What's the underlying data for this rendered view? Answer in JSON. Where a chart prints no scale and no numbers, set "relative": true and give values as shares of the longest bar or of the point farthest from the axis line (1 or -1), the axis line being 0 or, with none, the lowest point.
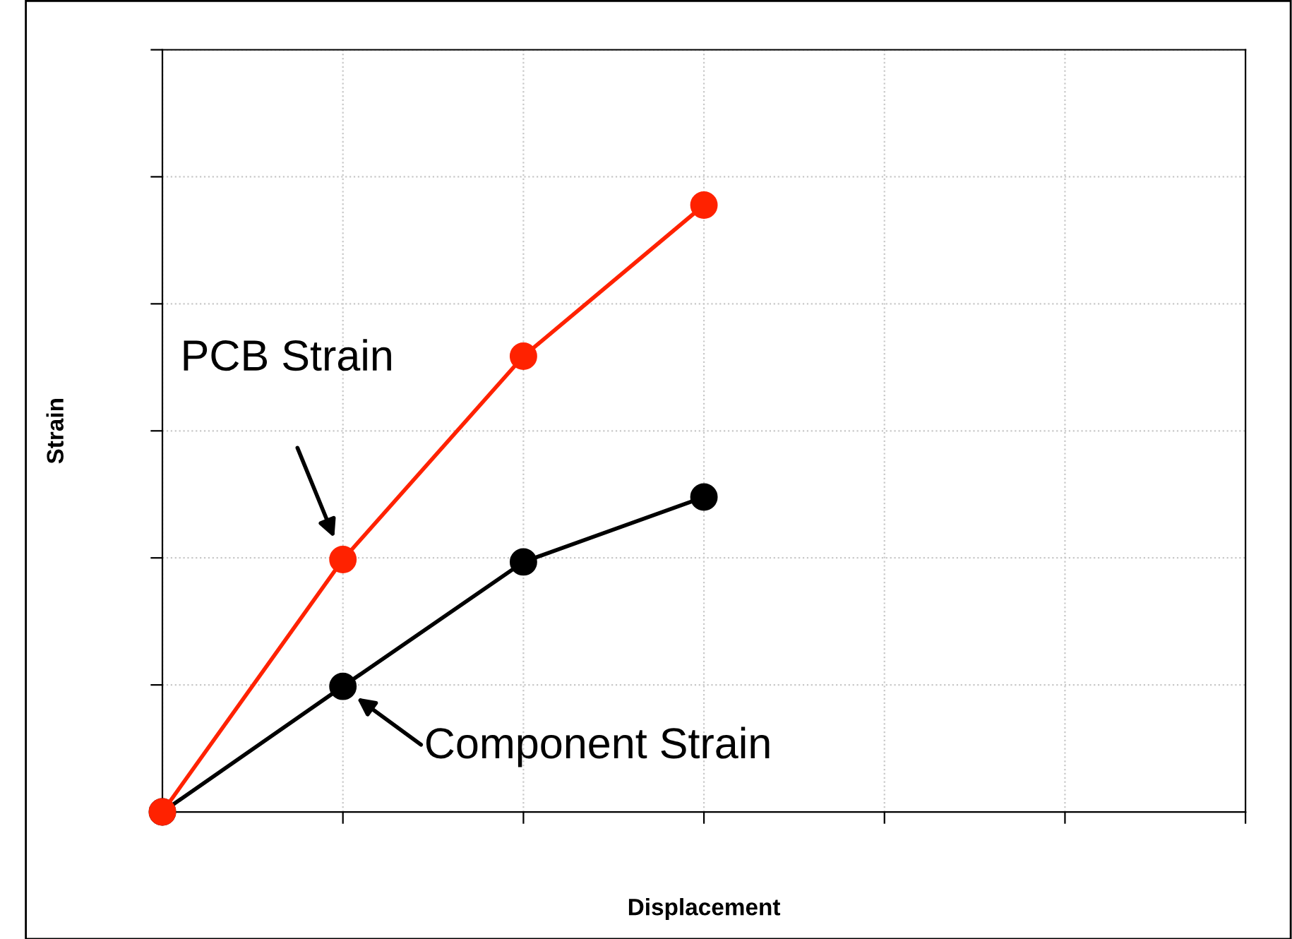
{
  "chart_data": {
    "type": "line",
    "xlabel": "Displacement",
    "ylabel": "Strain",
    "relative": true,
    "grid": true,
    "marker": "circle",
    "line_style": "solid",
    "categories": [
      null,
      null,
      null,
      null,
      null,
      null,
      null
    ],
    "series": [
      {
        "name": "PCB Strain",
        "color": "#ff2200",
        "values": [
          0,
          0.416,
          0.751,
          1,
          null,
          null,
          null
        ]
      },
      {
        "name": "Component Strain",
        "color": "#000000",
        "values": [
          0,
          0.207,
          0.412,
          0.519,
          null,
          null,
          null
        ]
      }
    ]
  }
}
